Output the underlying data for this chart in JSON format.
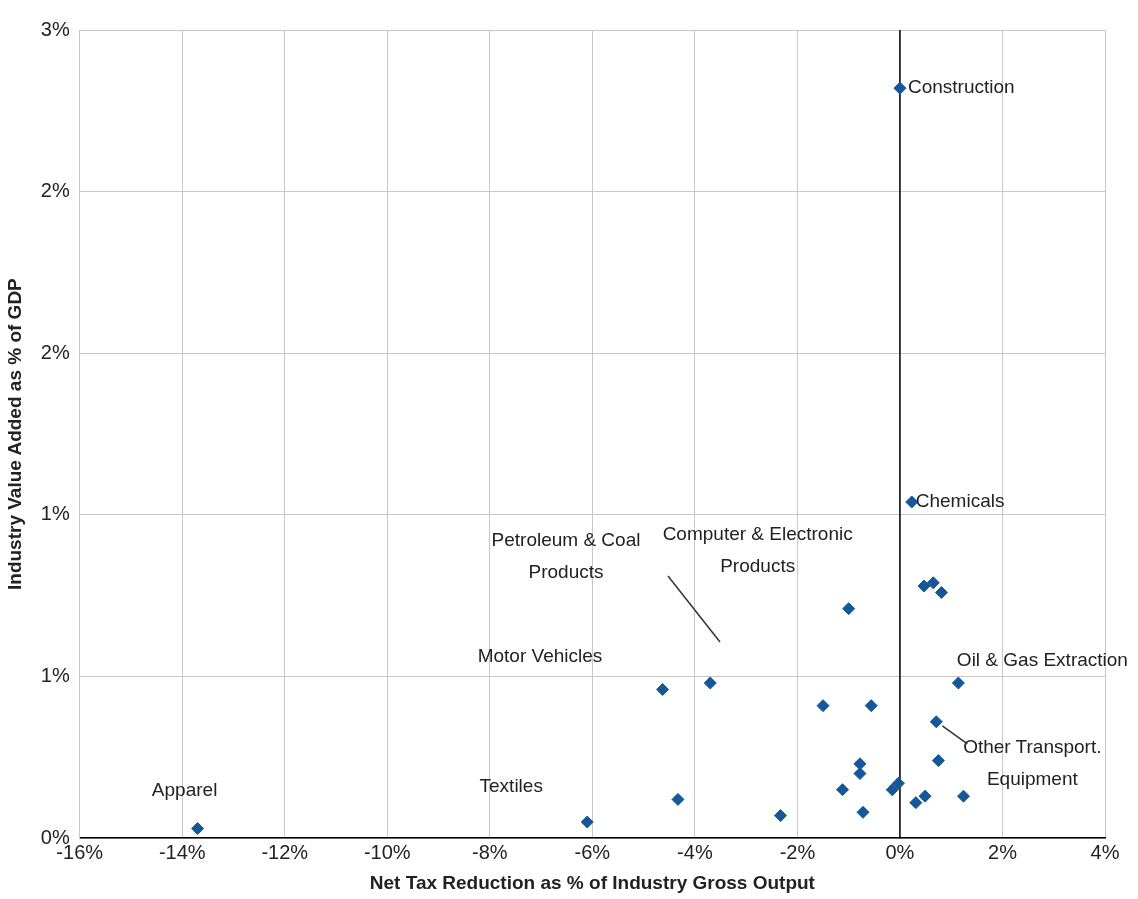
{
  "chart_data": {
    "type": "scatter",
    "xlabel": "Net Tax Reduction as % of Industry Gross Output",
    "ylabel": "Industry Value Added as % of GDP",
    "x": [
      0.0,
      0.23,
      -1.0,
      0.47,
      0.65,
      0.81,
      1.14,
      -4.63,
      -3.7,
      -1.5,
      -0.56,
      0.71,
      0.75,
      -0.78,
      -0.78,
      -1.12,
      -0.15,
      -0.03,
      -0.72,
      0.31,
      0.49,
      1.24,
      -4.33,
      -2.33,
      -6.1,
      -13.7
    ],
    "series": [
      {
        "color": "#15589a",
        "values": [
          2.32,
          1.04,
          0.71,
          0.78,
          0.79,
          0.76,
          0.48,
          0.46,
          0.48,
          0.41,
          0.41,
          0.36,
          0.24,
          0.23,
          0.2,
          0.15,
          0.15,
          0.17,
          0.08,
          0.11,
          0.13,
          0.13,
          0.12,
          0.07,
          0.05,
          0.03
        ]
      }
    ],
    "xlim": [
      -16,
      4
    ],
    "xticks": [
      {
        "value": -16,
        "label": "-16%"
      },
      {
        "value": -14,
        "label": "-14%"
      },
      {
        "value": -12,
        "label": "-12%"
      },
      {
        "value": -10,
        "label": "-10%"
      },
      {
        "value": -8,
        "label": "-8%"
      },
      {
        "value": -6,
        "label": "-6%"
      },
      {
        "value": -4,
        "label": "-4%"
      },
      {
        "value": -2,
        "label": "-2%"
      },
      {
        "value": 0,
        "label": "0%"
      },
      {
        "value": 2,
        "label": "2%"
      },
      {
        "value": 4,
        "label": "4%"
      }
    ],
    "ylim": [
      0,
      2.5
    ],
    "yticks": [
      {
        "value": 0,
        "label": "0%"
      },
      {
        "value": 0.5,
        "label": "1%"
      },
      {
        "value": 1,
        "label": "1%"
      },
      {
        "value": 1.5,
        "label": "2%"
      },
      {
        "value": 2,
        "label": "2%"
      },
      {
        "value": 2.5,
        "label": "3%"
      }
    ],
    "grid": true,
    "marker": "diamond",
    "ref_lines": [
      {
        "axis": "x",
        "value": 0,
        "color": "#000000"
      }
    ],
    "annotations": [
      {
        "text": "Construction",
        "x": 0.0,
        "y": 2.32
      },
      {
        "text": "Chemicals",
        "x": 0.23,
        "y": 1.04
      },
      {
        "text": "Computer & Electronic Products",
        "x": -1.0,
        "y": 0.71
      },
      "Petroleum & Coal Products",
      "Motor Vehicles",
      {
        "text": "Oil & Gas Extraction",
        "x": 1.14,
        "y": 0.48
      },
      {
        "text": "Other Transport. Equipment",
        "x": 0.71,
        "y": 0.36
      },
      {
        "text": "Textiles",
        "x": -6.1,
        "y": 0.05
      },
      {
        "text": "Apparel",
        "x": -13.7,
        "y": 0.03
      }
    ]
  }
}
